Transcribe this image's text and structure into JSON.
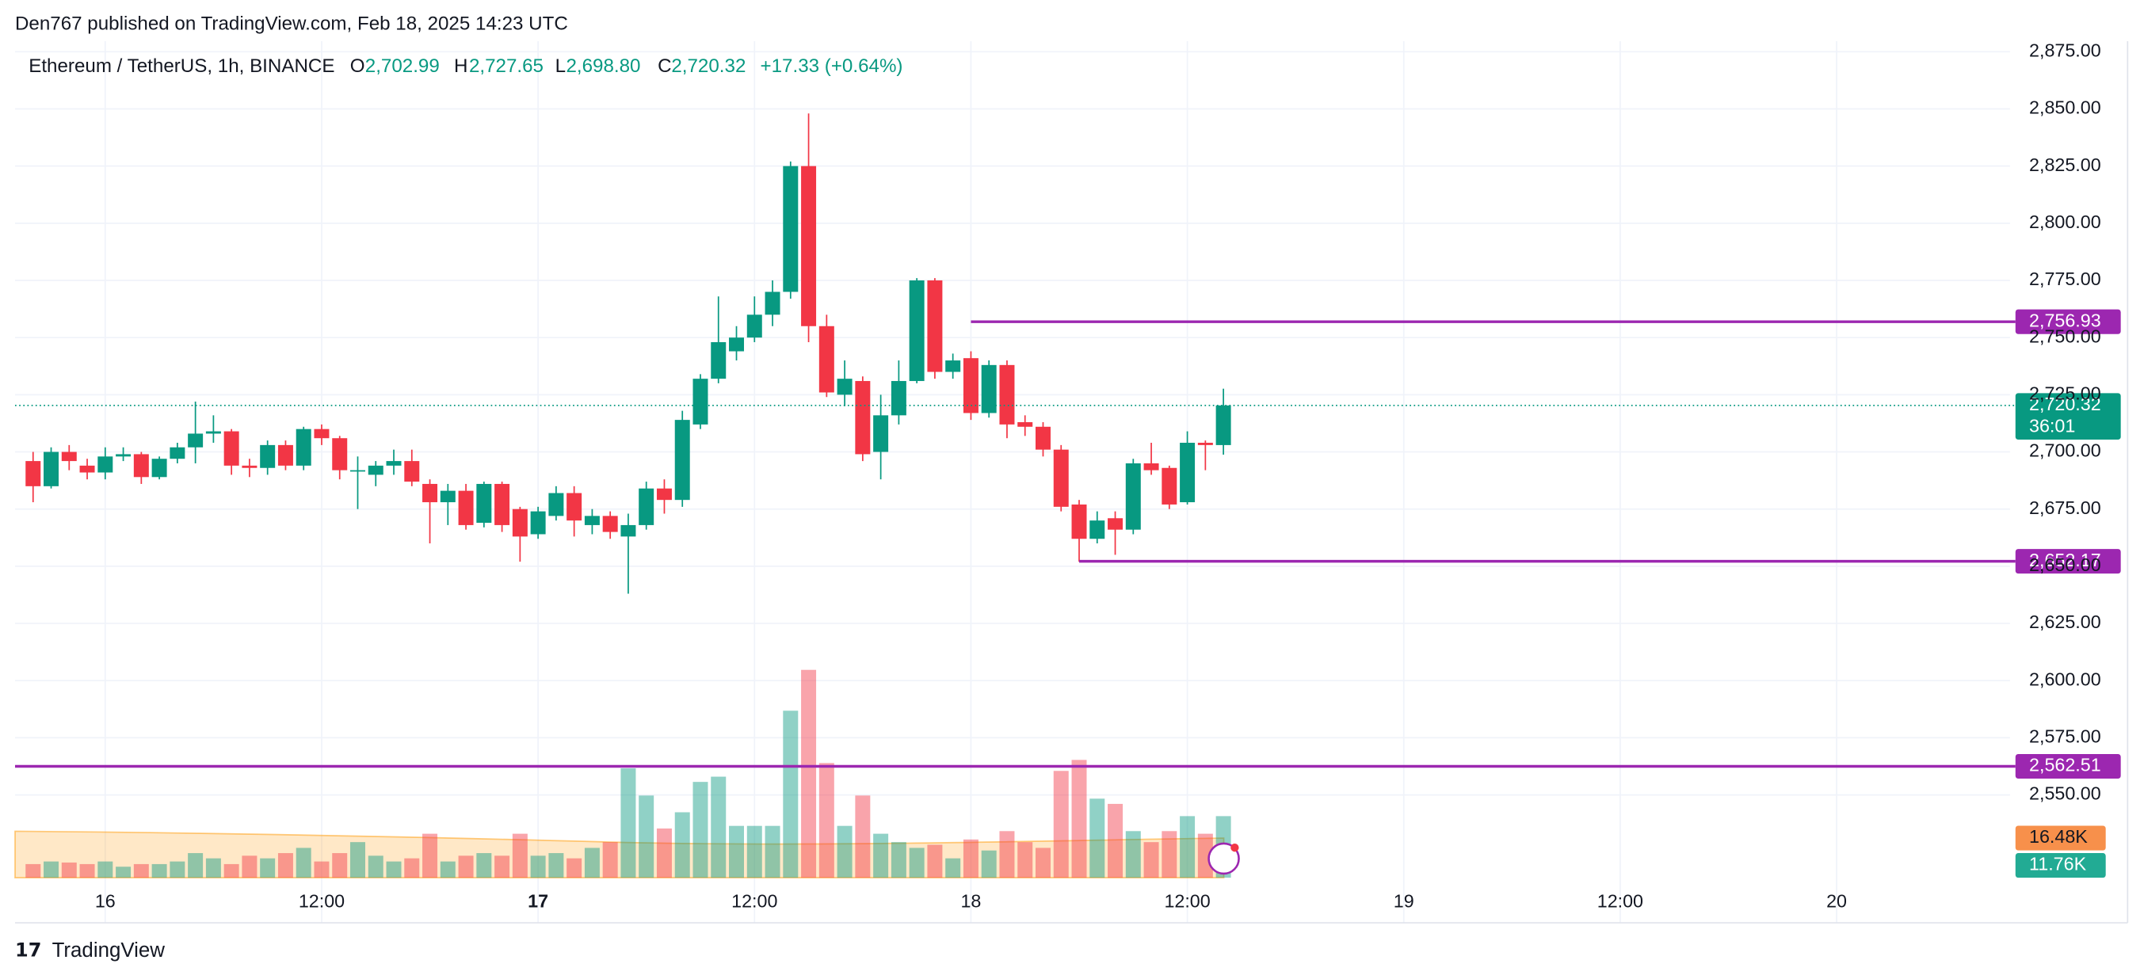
{
  "header": "Den767 published on TradingView.com, Feb 18, 2025 14:23 UTC",
  "footer": "TradingView",
  "chart_data": {
    "type": "candlestick",
    "legend": {
      "symbol": "Ethereum / TetherUS, 1h, BINANCE",
      "o": "O",
      "o_value": "2,702.99",
      "h": "H",
      "h_value": "2,727.65",
      "l": "L",
      "l_value": "2,698.80",
      "c": "C",
      "c_value": "2,720.32",
      "change": "+17.33 (+0.64%)"
    },
    "up_color": "#089981",
    "down_color": "#f23645",
    "open": [
      2696,
      2685,
      2700,
      2694,
      2691,
      2698,
      2699,
      2689,
      2697,
      2702,
      2708,
      2709,
      2694,
      2693,
      2703,
      2694,
      2710,
      2706,
      2692,
      2690,
      2694,
      2696,
      2686,
      2678,
      2683,
      2669,
      2686,
      2675,
      2664,
      2672,
      2682,
      2668,
      2672,
      2663,
      2668,
      2684,
      2679,
      2712,
      2732,
      2744,
      2750,
      2760,
      2770,
      2825,
      2755,
      2725,
      2731,
      2700,
      2716,
      2731,
      2775,
      2735,
      2741,
      2717,
      2738,
      2713,
      2711,
      2701,
      2677,
      2662,
      2671,
      2666,
      2695,
      2693,
      2678,
      2704,
      2702.99
    ],
    "high": [
      2700,
      2702,
      2703,
      2697,
      2702,
      2702,
      2700,
      2698,
      2704,
      2722,
      2716,
      2710,
      2697,
      2705,
      2705,
      2711,
      2712,
      2707,
      2698,
      2696,
      2701,
      2701,
      2688,
      2686,
      2686,
      2687,
      2687,
      2676,
      2676,
      2685,
      2685,
      2675,
      2674,
      2673,
      2687,
      2688,
      2718,
      2734,
      2768,
      2755,
      2768,
      2775,
      2827,
      2848,
      2760,
      2740,
      2733,
      2725,
      2740,
      2776,
      2776,
      2743,
      2744,
      2740,
      2740,
      2716,
      2713,
      2703,
      2679,
      2674,
      2674,
      2697,
      2704,
      2694,
      2709,
      2705,
      2727.65
    ],
    "low": [
      2678,
      2684,
      2692,
      2688,
      2688,
      2696,
      2686,
      2688,
      2695,
      2695,
      2704,
      2690,
      2689,
      2690,
      2692,
      2692,
      2703,
      2688,
      2675,
      2685,
      2690,
      2685,
      2660,
      2668,
      2666,
      2667,
      2665,
      2652,
      2662,
      2670,
      2663,
      2664,
      2662,
      2638,
      2666,
      2673,
      2676,
      2710,
      2730,
      2740,
      2748,
      2755,
      2767,
      2748,
      2724,
      2720,
      2696,
      2688,
      2712,
      2730,
      2732,
      2732,
      2714,
      2715,
      2706,
      2707,
      2698,
      2674,
      2652,
      2660,
      2655,
      2664,
      2690,
      2675,
      2677,
      2692,
      2698.8
    ],
    "close": [
      2685,
      2700,
      2696,
      2691,
      2698,
      2699,
      2689,
      2697,
      2702,
      2708,
      2709,
      2694,
      2693,
      2703,
      2694,
      2710,
      2706,
      2692,
      2692,
      2694,
      2696,
      2687,
      2678,
      2683,
      2668,
      2686,
      2668,
      2663,
      2674,
      2682,
      2670,
      2672,
      2665,
      2668,
      2684,
      2679,
      2714,
      2732,
      2748,
      2750,
      2760,
      2770,
      2825,
      2755,
      2726,
      2732,
      2699,
      2716,
      2731,
      2775,
      2735,
      2740,
      2717,
      2738,
      2712,
      2711,
      2701,
      2676,
      2662,
      2670,
      2666,
      2695,
      2692,
      2677,
      2704,
      2703,
      2720.32
    ],
    "volume": [
      2.6,
      3.1,
      2.9,
      2.6,
      3.1,
      2.1,
      2.6,
      2.6,
      3.1,
      4.7,
      3.7,
      2.6,
      4.2,
      3.7,
      4.7,
      5.7,
      3.1,
      4.7,
      6.8,
      4.2,
      3.1,
      3.7,
      8.4,
      3.1,
      4.2,
      4.7,
      4.2,
      8.4,
      4.2,
      4.7,
      3.7,
      5.7,
      6.8,
      20.9,
      15.7,
      9.4,
      12.5,
      18.3,
      19.3,
      9.9,
      9.9,
      9.9,
      31.9,
      39.7,
      21.9,
      9.9,
      15.7,
      8.4,
      6.8,
      5.7,
      6.3,
      3.7,
      7.3,
      5.2,
      8.9,
      6.8,
      5.7,
      20.4,
      22.5,
      15.1,
      14.1,
      8.9,
      6.8,
      8.9,
      11.76,
      8.4,
      11.76
    ],
    "volume_labels": {
      "ma": "16.48K",
      "last": "11.76K"
    },
    "ylim": [
      2512,
      2888
    ],
    "yticks": [
      {
        "value": 2550,
        "label": "2,550.00"
      },
      {
        "value": 2575,
        "label": "2,575.00"
      },
      {
        "value": 2600,
        "label": "2,600.00"
      },
      {
        "value": 2625,
        "label": "2,625.00"
      },
      {
        "value": 2650,
        "label": "2,650.00"
      },
      {
        "value": 2675,
        "label": "2,675.00"
      },
      {
        "value": 2700,
        "label": "2,700.00"
      },
      {
        "value": 2725,
        "label": "2,725.00"
      },
      {
        "value": 2750,
        "label": "2,750.00"
      },
      {
        "value": 2775,
        "label": "2,775.00"
      },
      {
        "value": 2800,
        "label": "2,800.00"
      },
      {
        "value": 2825,
        "label": "2,825.00"
      },
      {
        "value": 2850,
        "label": "2,850.00"
      },
      {
        "value": 2875,
        "label": "2,875.00"
      }
    ],
    "xticks": [
      {
        "value": 4,
        "label": "16"
      },
      {
        "value": 16,
        "label": "12:00"
      },
      {
        "value": 28,
        "label": "17"
      },
      {
        "value": 40,
        "label": "12:00"
      },
      {
        "value": 52,
        "label": "18"
      },
      {
        "value": 64,
        "label": "12:00"
      },
      {
        "value": 76,
        "label": "19"
      },
      {
        "value": 88,
        "label": "12:00"
      },
      {
        "value": 100,
        "label": "20"
      }
    ],
    "grid": true,
    "levels": [
      {
        "value": 2756.93,
        "label": "2,756.93",
        "from": 52
      },
      {
        "value": 2652.17,
        "label": "2,652.17",
        "from": 58
      },
      {
        "value": 2562.51,
        "label": "2,562.51"
      }
    ],
    "level_color": "#9c27b0",
    "last_price": {
      "value": 2720.32,
      "label": "2,720.32",
      "countdown": "36:01"
    }
  }
}
